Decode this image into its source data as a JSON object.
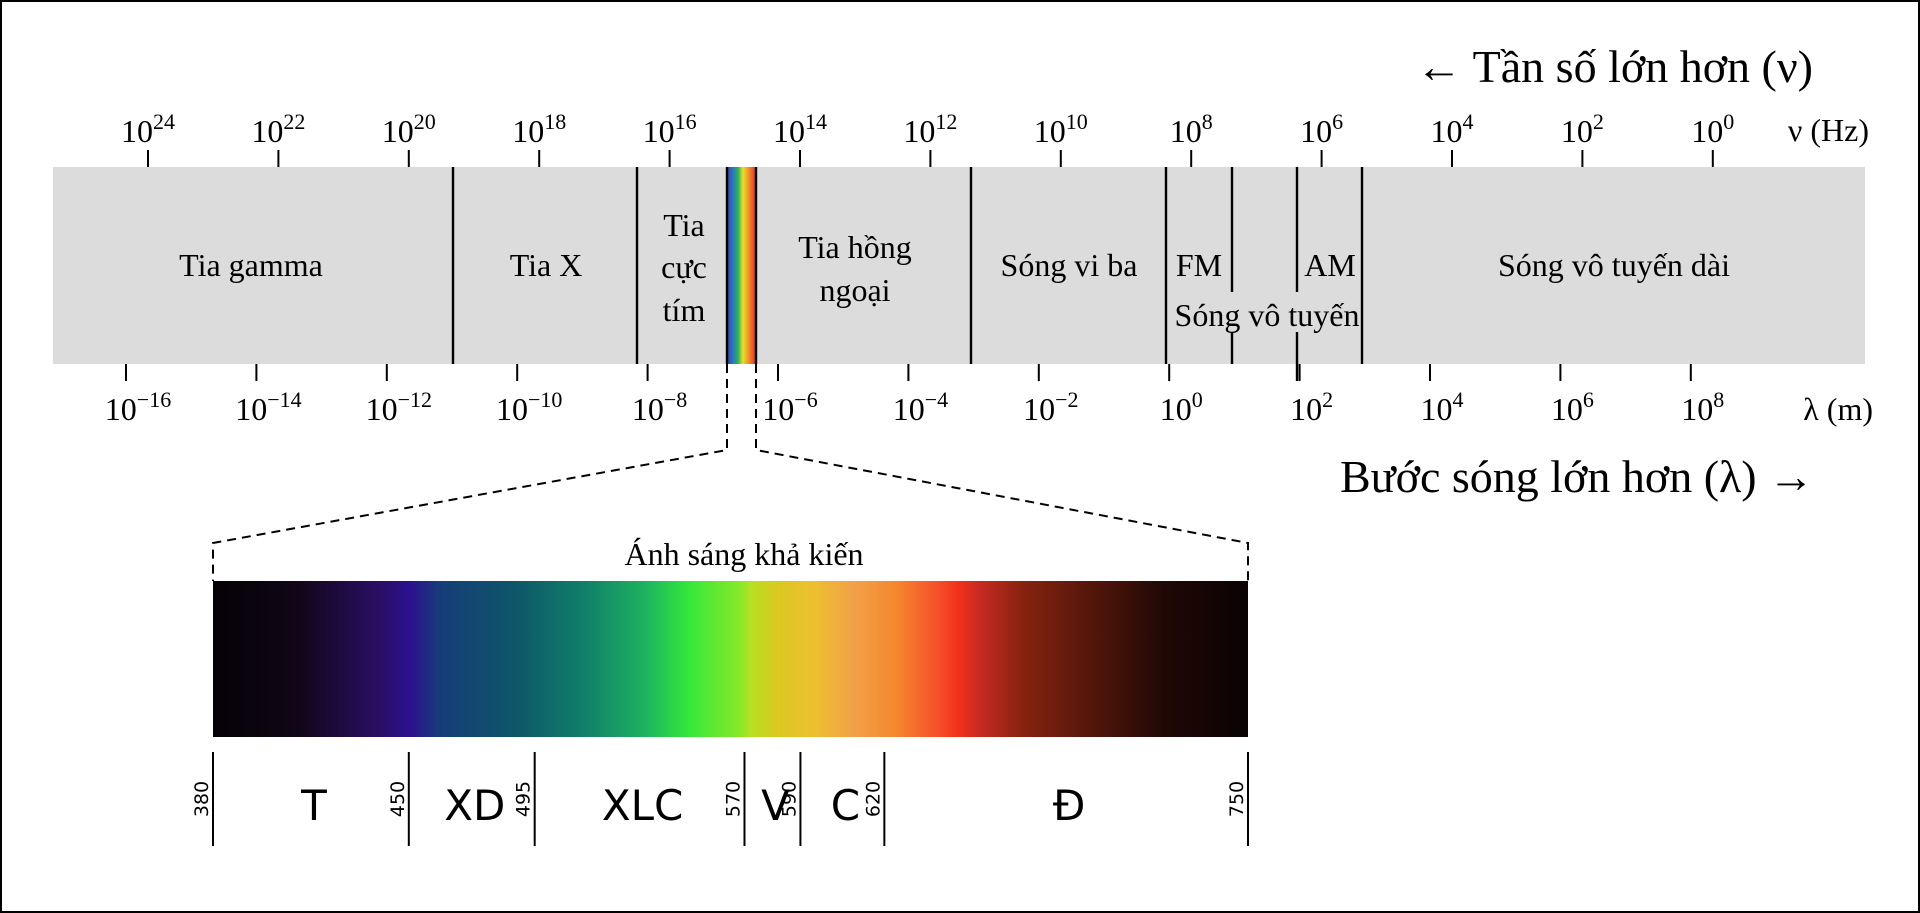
{
  "header": {
    "frequency_label": "← Tần số lớn hơn (ν)",
    "wavelength_label": "Bước sóng lớn hơn (λ) →"
  },
  "frequency_axis": {
    "unit_label": "ν (Hz)",
    "ticks": [
      {
        "base": "10",
        "exp": "24"
      },
      {
        "base": "10",
        "exp": "22"
      },
      {
        "base": "10",
        "exp": "20"
      },
      {
        "base": "10",
        "exp": "18"
      },
      {
        "base": "10",
        "exp": "16"
      },
      {
        "base": "10",
        "exp": "14"
      },
      {
        "base": "10",
        "exp": "12"
      },
      {
        "base": "10",
        "exp": "10"
      },
      {
        "base": "10",
        "exp": "8"
      },
      {
        "base": "10",
        "exp": "6"
      },
      {
        "base": "10",
        "exp": "4"
      },
      {
        "base": "10",
        "exp": "2"
      },
      {
        "base": "10",
        "exp": "0"
      }
    ]
  },
  "wavelength_axis": {
    "unit_label": "λ (m)",
    "ticks": [
      {
        "base": "10",
        "exp": "−16"
      },
      {
        "base": "10",
        "exp": "−14"
      },
      {
        "base": "10",
        "exp": "−12"
      },
      {
        "base": "10",
        "exp": "−10"
      },
      {
        "base": "10",
        "exp": "−8"
      },
      {
        "base": "10",
        "exp": "−6"
      },
      {
        "base": "10",
        "exp": "−4"
      },
      {
        "base": "10",
        "exp": "−2"
      },
      {
        "base": "10",
        "exp": "0"
      },
      {
        "base": "10",
        "exp": "2"
      },
      {
        "base": "10",
        "exp": "4"
      },
      {
        "base": "10",
        "exp": "6"
      },
      {
        "base": "10",
        "exp": "8"
      }
    ]
  },
  "bands": {
    "gamma": "Tia gamma",
    "xray": "Tia X",
    "uv_line1": "Tia",
    "uv_line2": "cực",
    "uv_line3": "tím",
    "ir_line1": "Tia hồng",
    "ir_line2": "ngoại",
    "microwave": "Sóng vi ba",
    "fm": "FM",
    "am": "AM",
    "radio": "Sóng vô tuyến",
    "long_radio": "Sóng vô tuyến dài"
  },
  "visible": {
    "title": "Ánh sáng khả kiến",
    "marks": [
      "380",
      "450",
      "495",
      "570",
      "590",
      "620",
      "750"
    ],
    "colors": [
      {
        "label": "T",
        "nm": [
          380,
          450
        ]
      },
      {
        "label": "XD",
        "nm": [
          450,
          495
        ]
      },
      {
        "label": "XLC",
        "nm": [
          495,
          570
        ]
      },
      {
        "label": "V",
        "nm": [
          570,
          590
        ]
      },
      {
        "label": "C",
        "nm": [
          590,
          620
        ]
      },
      {
        "label": "Đ",
        "nm": [
          620,
          750
        ]
      }
    ]
  },
  "colors": {
    "band_fill": "#dcdcdc",
    "spectrum_stops": [
      "#050205",
      "#100616",
      "#2a0f63",
      "#2c1090",
      "#163d78",
      "#0e5569",
      "#11806a",
      "#1eb55f",
      "#34e83a",
      "#8ae829",
      "#dac81f",
      "#f2a048",
      "#f5502a",
      "#e22a12",
      "#a52a14",
      "#5a180b",
      "#200806",
      "#0a0203"
    ]
  }
}
